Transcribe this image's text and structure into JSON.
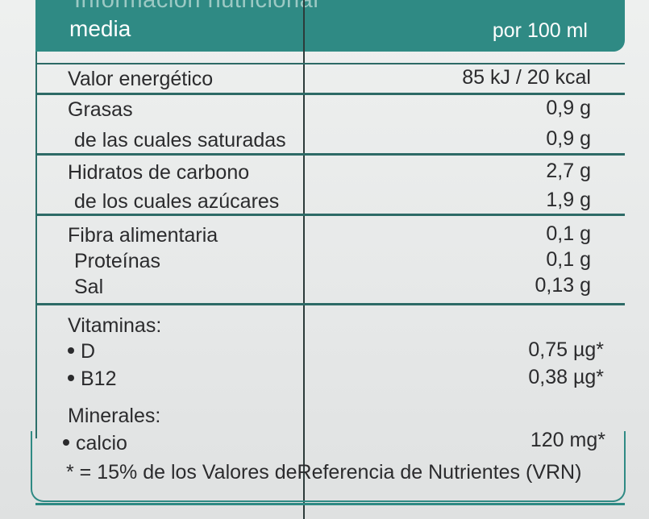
{
  "header": {
    "title_top": "Información nutricional",
    "title": "media",
    "column_label": "por 100 ml"
  },
  "rows": [
    {
      "label": "Valor energético",
      "value": "85 kJ / 20 kcal"
    },
    {
      "label": "Grasas",
      "value": "0,9 g"
    },
    {
      "label": "de las cuales saturadas",
      "value": "0,9 g"
    },
    {
      "label": "Hidratos de carbono",
      "value": "2,7 g"
    },
    {
      "label": "de los cuales azúcares",
      "value": "1,9 g"
    },
    {
      "label": "Fibra alimentaria",
      "value": "0,1 g"
    },
    {
      "label": "Proteínas",
      "value": "0,1 g"
    },
    {
      "label": "Sal",
      "value": "0,13 g"
    }
  ],
  "vitamins": {
    "heading": "Vitaminas:",
    "items": [
      {
        "label": "D",
        "value": "0,75 µg*"
      },
      {
        "label": "B12",
        "value": "0,38 µg*"
      }
    ]
  },
  "minerals": {
    "heading": "Minerales:",
    "items": [
      {
        "label": "calcio",
        "value": "120 mg*"
      }
    ]
  },
  "footnote": "* = 15% de los Valores deReferencia de Nutrientes (VRN)",
  "colors": {
    "accent": "#2f8a84",
    "text": "#2b2b2d"
  }
}
